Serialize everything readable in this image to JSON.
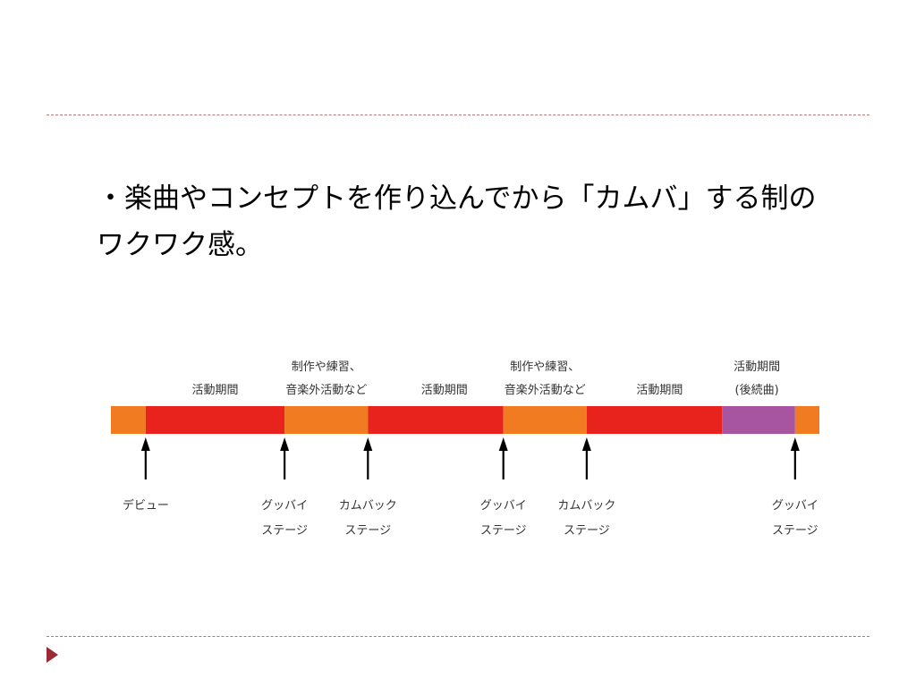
{
  "slide": {
    "text_lines": [
      "・楽曲やコンセプトを作り込んでから「カムバ」する制の",
      "ワクワク感。"
    ]
  },
  "colors": {
    "active": "#e8231d",
    "prep": "#f07b20",
    "sequel": "#a855a1",
    "divider": "#b5767a",
    "nav_arrow": "#9b2a35"
  },
  "timeline": {
    "segments": [
      {
        "kind": "prep",
        "start": 0,
        "end": 1
      },
      {
        "kind": "active",
        "start": 1,
        "end": 5
      },
      {
        "kind": "prep",
        "start": 5,
        "end": 7.4
      },
      {
        "kind": "active",
        "start": 7.4,
        "end": 11.3
      },
      {
        "kind": "prep",
        "start": 11.3,
        "end": 13.7
      },
      {
        "kind": "active",
        "start": 13.7,
        "end": 17.6
      },
      {
        "kind": "sequel",
        "start": 17.6,
        "end": 19.7
      },
      {
        "kind": "prep",
        "start": 19.7,
        "end": 20.4
      }
    ],
    "top_labels": [
      {
        "at": 3.0,
        "lines": [
          "活動期間"
        ]
      },
      {
        "at": 6.2,
        "lines": [
          "制作や練習、",
          "音楽外活動など"
        ]
      },
      {
        "at": 9.6,
        "lines": [
          "活動期間"
        ]
      },
      {
        "at": 12.5,
        "lines": [
          "制作や練習、",
          "音楽外活動など"
        ]
      },
      {
        "at": 15.8,
        "lines": [
          "活動期間"
        ]
      },
      {
        "at": 18.6,
        "lines": [
          "活動期間",
          "(後続曲)"
        ]
      }
    ],
    "events": [
      {
        "at": 1.0,
        "lines": [
          "デビュー"
        ]
      },
      {
        "at": 5.0,
        "lines": [
          "グッバイ",
          "ステージ"
        ]
      },
      {
        "at": 7.4,
        "lines": [
          "カムバック",
          "ステージ"
        ]
      },
      {
        "at": 11.3,
        "lines": [
          "グッバイ",
          "ステージ"
        ]
      },
      {
        "at": 13.7,
        "lines": [
          "カムバック",
          "ステージ"
        ]
      },
      {
        "at": 19.7,
        "lines": [
          "グッバイ",
          "ステージ"
        ]
      }
    ]
  }
}
